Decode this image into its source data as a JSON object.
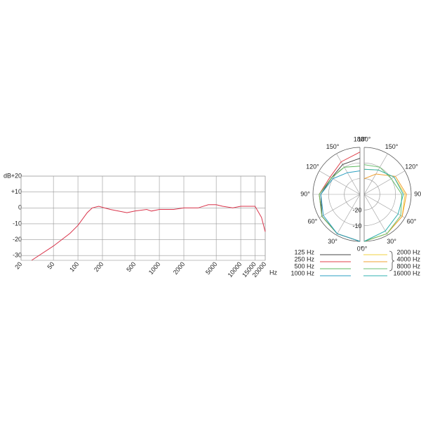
{
  "chart_data": [
    {
      "type": "line",
      "x_scale": "log",
      "y_label": "dB",
      "x_label": "Hz",
      "grid": true,
      "x": [
        27,
        50,
        80,
        100,
        130,
        150,
        180,
        250,
        400,
        500,
        700,
        800,
        1000,
        1500,
        2000,
        3000,
        4000,
        5000,
        6000,
        8000,
        10000,
        13000,
        15000,
        18000,
        20000
      ],
      "series": [
        {
          "name": null,
          "color": "#d9334a",
          "values": [
            -33,
            -24,
            -16,
            -11,
            -3,
            0,
            1,
            -1,
            -3,
            -2,
            -1,
            -2,
            -1,
            -1,
            0,
            0,
            2,
            2,
            1,
            0,
            1,
            1,
            1,
            -6,
            -15
          ]
        }
      ],
      "xlim": [
        20,
        20000
      ],
      "xticks": [
        20,
        50,
        100,
        200,
        500,
        1000,
        2000,
        5000,
        10000,
        15000,
        20000
      ],
      "ylim": [
        -33,
        20
      ],
      "yticks": [
        {
          "value": 20,
          "label": "+20"
        },
        {
          "value": 10,
          "label": "+10"
        },
        0,
        -10,
        -20,
        -30
      ]
    },
    {
      "type": "polar",
      "theta": [
        0,
        30,
        60,
        90,
        120,
        150,
        180
      ],
      "thetaticks": [
        {
          "value": 0,
          "label": "0°"
        },
        {
          "value": 30,
          "label": "30°"
        },
        {
          "value": 60,
          "label": "60°"
        },
        {
          "value": 90,
          "label": "90°"
        },
        {
          "value": 120,
          "label": "120°"
        },
        {
          "value": 150,
          "label": "150°"
        },
        {
          "value": 180,
          "label": "180°"
        }
      ],
      "rlim": [
        -30,
        0
      ],
      "rticks": [
        -20,
        -10
      ],
      "series": [
        {
          "name": "125 Hz",
          "half": "left",
          "color": "#444444",
          "values": [
            0,
            -1,
            -2,
            -5,
            -9,
            -8,
            -7
          ]
        },
        {
          "name": "250 Hz",
          "half": "left",
          "color": "#e0404a",
          "values": [
            0,
            -1,
            -2,
            -4,
            -8,
            -6,
            -3
          ]
        },
        {
          "name": "500 Hz",
          "half": "left",
          "color": "#5cb85c",
          "values": [
            0,
            -1,
            -2,
            -4,
            -9,
            -10,
            -12
          ]
        },
        {
          "name": "1000 Hz",
          "half": "left",
          "color": "#2a9fc0",
          "values": [
            0,
            -1,
            -3,
            -5,
            -10,
            -14,
            -15
          ]
        },
        {
          "name": "2000 Hz",
          "half": "right",
          "color": "#f0d040",
          "values": [
            0,
            -1,
            -2,
            -4,
            -8,
            -12,
            -14
          ]
        },
        {
          "name": "4000 Hz",
          "half": "right",
          "color": "#f0a030",
          "values": [
            0,
            -1,
            -2,
            -3,
            -7,
            -15,
            -20
          ]
        },
        {
          "name": "8000 Hz",
          "half": "right",
          "color": "#6cc070",
          "values": [
            0,
            -1,
            -3,
            -6,
            -10,
            -10,
            -11
          ]
        },
        {
          "name": "16000 Hz",
          "half": "right",
          "color": "#30b0b0",
          "values": [
            0,
            -3,
            -5,
            -5,
            -8,
            -12,
            -14
          ]
        }
      ]
    }
  ]
}
